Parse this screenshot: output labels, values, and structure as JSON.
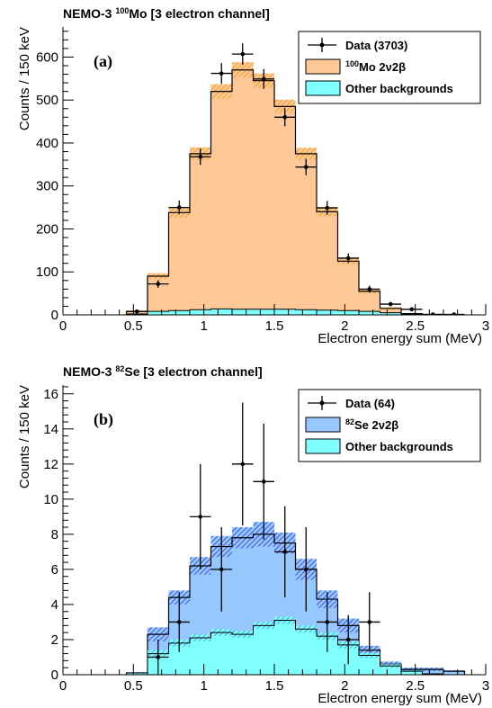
{
  "chart_data": [
    {
      "type": "histogram",
      "title": {
        "prefix": "NEMO-3 ",
        "isotope_mass": "100",
        "suffix": "Mo [3 electron channel]"
      },
      "panel_label": "(a)",
      "xlabel": "Electron energy sum (MeV)",
      "ylabel": "Counts / 150 keV",
      "xlim": [
        0,
        3
      ],
      "ylim": [
        0,
        670
      ],
      "xticks": [
        0,
        0.5,
        1,
        1.5,
        2,
        2.5,
        3
      ],
      "xtick_labels": [
        "0",
        "0.5",
        "1",
        "1.5",
        "2",
        "2.5",
        "3"
      ],
      "yticks": [
        0,
        100,
        200,
        300,
        400,
        500,
        600
      ],
      "ytick_labels": [
        "0",
        "100",
        "200",
        "300",
        "400",
        "500",
        "600"
      ],
      "bin_edges": [
        0.45,
        0.6,
        0.75,
        0.9,
        1.05,
        1.2,
        1.35,
        1.5,
        1.65,
        1.8,
        1.95,
        2.1,
        2.25,
        2.4,
        2.55,
        2.7,
        2.85
      ],
      "series": [
        {
          "name": "Other backgrounds",
          "kind": "stack_bottom",
          "color": "#80ffff",
          "values": [
            2,
            8,
            10,
            12,
            14,
            13,
            13,
            13,
            12,
            11,
            10,
            8,
            5,
            2,
            1,
            0
          ]
        },
        {
          "name": "2ν2β",
          "kind": "stack_top",
          "color": "#ffc896",
          "isotope_mass": "100",
          "isotope": "Mo",
          "totals": [
            8,
            90,
            238,
            375,
            520,
            570,
            545,
            485,
            375,
            240,
            125,
            55,
            15,
            3,
            1,
            0
          ],
          "band": [
            2,
            7,
            12,
            15,
            17,
            18,
            17,
            16,
            14,
            11,
            8,
            5,
            3,
            1,
            0,
            0
          ],
          "band_color": "#f5a020"
        },
        {
          "name": "Data",
          "kind": "data",
          "count": "3703",
          "x": [
            0.525,
            0.675,
            0.825,
            0.975,
            1.125,
            1.275,
            1.425,
            1.575,
            1.725,
            1.875,
            2.025,
            2.175,
            2.325,
            2.475,
            2.625,
            2.775
          ],
          "y": [
            8,
            72,
            250,
            368,
            562,
            607,
            549,
            460,
            344,
            249,
            132,
            60,
            25,
            13,
            1,
            1
          ],
          "err": [
            3,
            9,
            16,
            19,
            24,
            25,
            23,
            21,
            19,
            16,
            11,
            8,
            5,
            4,
            1,
            1
          ]
        }
      ],
      "legend": {
        "placement": "top-right",
        "entries": [
          {
            "label_parts": [
              "Data (3703)"
            ],
            "marker": "errorbar"
          },
          {
            "label_parts": [
              "100",
              "Mo 2ν2β"
            ],
            "marker": "box",
            "color": "#ffc896"
          },
          {
            "label_parts": [
              "Other backgrounds"
            ],
            "marker": "box",
            "color": "#80ffff"
          }
        ]
      },
      "grid": false
    },
    {
      "type": "histogram",
      "title": {
        "prefix": "NEMO-3 ",
        "isotope_mass": "82",
        "suffix": "Se [3 electron channel]"
      },
      "panel_label": "(b)",
      "xlabel": "Electron energy sum (MeV)",
      "ylabel": "Counts / 150 keV",
      "xlim": [
        0,
        3
      ],
      "ylim": [
        0,
        16.5
      ],
      "xticks": [
        0,
        0.5,
        1,
        1.5,
        2,
        2.5,
        3
      ],
      "xtick_labels": [
        "0",
        "0.5",
        "1",
        "1.5",
        "2",
        "2.5",
        "3"
      ],
      "yticks": [
        0,
        2,
        4,
        6,
        8,
        10,
        12,
        14,
        16
      ],
      "ytick_labels": [
        "0",
        "2",
        "4",
        "6",
        "8",
        "10",
        "12",
        "14",
        "16"
      ],
      "bin_edges": [
        0.45,
        0.6,
        0.75,
        0.9,
        1.05,
        1.2,
        1.35,
        1.5,
        1.65,
        1.8,
        1.95,
        2.1,
        2.25,
        2.4,
        2.55,
        2.7,
        2.85
      ],
      "series": [
        {
          "name": "Other backgrounds",
          "kind": "stack_bottom",
          "color": "#80ffff",
          "values": [
            0.1,
            1.2,
            1.8,
            2.1,
            2.4,
            2.3,
            2.8,
            3.1,
            2.6,
            2.2,
            1.7,
            1.1,
            0.5,
            0.2,
            0.05,
            0
          ],
          "band": [
            0,
            0.2,
            0.2,
            0.2,
            0.2,
            0.2,
            0.2,
            0.2,
            0.2,
            0.2,
            0.2,
            0.15,
            0.1,
            0.05,
            0,
            0
          ]
        },
        {
          "name": "2ν2β",
          "kind": "stack_top",
          "color": "#96c8ff",
          "isotope_mass": "82",
          "isotope": "Se",
          "totals": [
            0.1,
            2.3,
            4.4,
            6.2,
            7.3,
            7.8,
            8.0,
            7.5,
            6.0,
            4.3,
            2.8,
            1.4,
            0.6,
            0.3,
            0.3,
            0.2
          ],
          "band": [
            0.05,
            0.4,
            0.4,
            0.5,
            0.6,
            0.6,
            0.7,
            0.6,
            0.6,
            0.5,
            0.4,
            0.25,
            0.15,
            0.1,
            0.1,
            0.05
          ],
          "band_color": "#3c50e6"
        },
        {
          "name": "Data",
          "kind": "data",
          "count": "64",
          "x": [
            0.675,
            0.825,
            0.975,
            1.125,
            1.275,
            1.425,
            1.575,
            1.725,
            1.875,
            2.025,
            2.175
          ],
          "y": [
            1,
            3,
            9,
            6,
            12,
            11,
            7,
            6,
            3,
            2,
            3
          ],
          "err": [
            1,
            1.7,
            3,
            2.4,
            3.5,
            3.3,
            2.6,
            2.4,
            1.7,
            1.4,
            1.7
          ]
        }
      ],
      "legend": {
        "placement": "top-right",
        "entries": [
          {
            "label_parts": [
              "Data (64)"
            ],
            "marker": "errorbar"
          },
          {
            "label_parts": [
              "82",
              "Se 2ν2β"
            ],
            "marker": "box",
            "color": "#96c8ff"
          },
          {
            "label_parts": [
              "Other backgrounds"
            ],
            "marker": "box",
            "color": "#80ffff"
          }
        ]
      },
      "grid": false
    }
  ]
}
